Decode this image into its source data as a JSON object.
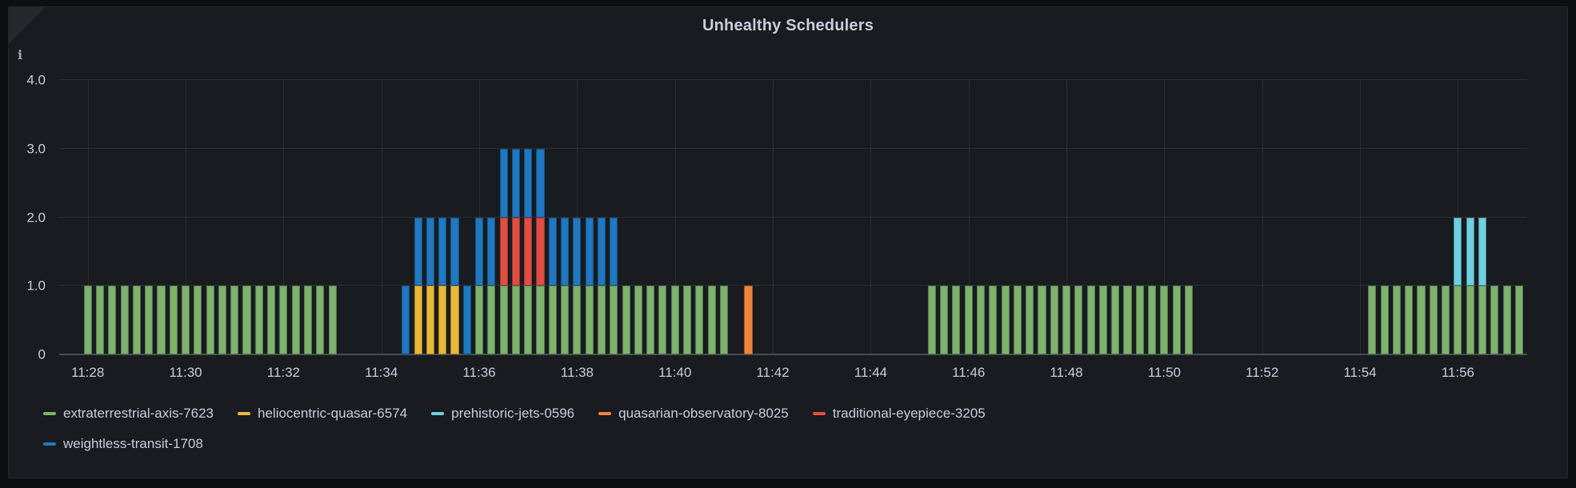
{
  "panel": {
    "info_icon_glyph": "i"
  },
  "chart_data": {
    "type": "bar",
    "stacked": true,
    "title": "Unhealthy Schedulers",
    "xlabel": "",
    "ylabel": "",
    "grid": true,
    "legend_position": "bottom",
    "legend_wrap_after": 5,
    "ylim": [
      0,
      4
    ],
    "y_ticks": [
      {
        "label": "0",
        "value": 0
      },
      {
        "label": "1.0",
        "value": 1
      },
      {
        "label": "2.0",
        "value": 2
      },
      {
        "label": "3.0",
        "value": 3
      },
      {
        "label": "4.0",
        "value": 4
      }
    ],
    "x_range": [
      "11:27:25",
      "11:57:25"
    ],
    "x_ticks": [
      "11:28",
      "11:30",
      "11:32",
      "11:34",
      "11:36",
      "11:38",
      "11:40",
      "11:42",
      "11:44",
      "11:46",
      "11:48",
      "11:50",
      "11:52",
      "11:54",
      "11:56"
    ],
    "bar_interval_seconds": 15,
    "series": [
      {
        "name": "extraterrestrial-axis-7623",
        "color": "#7EB26D"
      },
      {
        "name": "heliocentric-quasar-6574",
        "color": "#EAB839"
      },
      {
        "name": "prehistoric-jets-0596",
        "color": "#6ED0E0"
      },
      {
        "name": "quasarian-observatory-8025",
        "color": "#EF843C"
      },
      {
        "name": "traditional-eyepiece-3205",
        "color": "#E24D42"
      },
      {
        "name": "weightless-transit-1708",
        "color": "#1F78C1"
      }
    ],
    "bars": [
      [
        "11:28:00",
        [
          1,
          0,
          0,
          0,
          0,
          0
        ]
      ],
      [
        "11:28:15",
        [
          1,
          0,
          0,
          0,
          0,
          0
        ]
      ],
      [
        "11:28:30",
        [
          1,
          0,
          0,
          0,
          0,
          0
        ]
      ],
      [
        "11:28:45",
        [
          1,
          0,
          0,
          0,
          0,
          0
        ]
      ],
      [
        "11:29:00",
        [
          1,
          0,
          0,
          0,
          0,
          0
        ]
      ],
      [
        "11:29:15",
        [
          1,
          0,
          0,
          0,
          0,
          0
        ]
      ],
      [
        "11:29:30",
        [
          1,
          0,
          0,
          0,
          0,
          0
        ]
      ],
      [
        "11:29:45",
        [
          1,
          0,
          0,
          0,
          0,
          0
        ]
      ],
      [
        "11:30:00",
        [
          1,
          0,
          0,
          0,
          0,
          0
        ]
      ],
      [
        "11:30:15",
        [
          1,
          0,
          0,
          0,
          0,
          0
        ]
      ],
      [
        "11:30:30",
        [
          1,
          0,
          0,
          0,
          0,
          0
        ]
      ],
      [
        "11:30:45",
        [
          1,
          0,
          0,
          0,
          0,
          0
        ]
      ],
      [
        "11:31:00",
        [
          1,
          0,
          0,
          0,
          0,
          0
        ]
      ],
      [
        "11:31:15",
        [
          1,
          0,
          0,
          0,
          0,
          0
        ]
      ],
      [
        "11:31:30",
        [
          1,
          0,
          0,
          0,
          0,
          0
        ]
      ],
      [
        "11:31:45",
        [
          1,
          0,
          0,
          0,
          0,
          0
        ]
      ],
      [
        "11:32:00",
        [
          1,
          0,
          0,
          0,
          0,
          0
        ]
      ],
      [
        "11:32:15",
        [
          1,
          0,
          0,
          0,
          0,
          0
        ]
      ],
      [
        "11:32:30",
        [
          1,
          0,
          0,
          0,
          0,
          0
        ]
      ],
      [
        "11:32:45",
        [
          1,
          0,
          0,
          0,
          0,
          0
        ]
      ],
      [
        "11:33:00",
        [
          1,
          0,
          0,
          0,
          0,
          0
        ]
      ],
      [
        "11:34:30",
        [
          0,
          0,
          0,
          0,
          0,
          1
        ]
      ],
      [
        "11:34:45",
        [
          0,
          1,
          0,
          0,
          0,
          1
        ]
      ],
      [
        "11:35:00",
        [
          0,
          1,
          0,
          0,
          0,
          1
        ]
      ],
      [
        "11:35:15",
        [
          0,
          1,
          0,
          0,
          0,
          1
        ]
      ],
      [
        "11:35:30",
        [
          0,
          1,
          0,
          0,
          0,
          1
        ]
      ],
      [
        "11:35:45",
        [
          0,
          0,
          0,
          0,
          0,
          1
        ]
      ],
      [
        "11:36:00",
        [
          1,
          0,
          0,
          0,
          0,
          1
        ]
      ],
      [
        "11:36:15",
        [
          1,
          0,
          0,
          0,
          0,
          1
        ]
      ],
      [
        "11:36:30",
        [
          1,
          0,
          0,
          0,
          1,
          1
        ]
      ],
      [
        "11:36:45",
        [
          1,
          0,
          0,
          0,
          1,
          1
        ]
      ],
      [
        "11:37:00",
        [
          1,
          0,
          0,
          0,
          1,
          1
        ]
      ],
      [
        "11:37:15",
        [
          1,
          0,
          0,
          0,
          1,
          1
        ]
      ],
      [
        "11:37:30",
        [
          1,
          0,
          0,
          0,
          0,
          1
        ]
      ],
      [
        "11:37:45",
        [
          1,
          0,
          0,
          0,
          0,
          1
        ]
      ],
      [
        "11:38:00",
        [
          1,
          0,
          0,
          0,
          0,
          1
        ]
      ],
      [
        "11:38:15",
        [
          1,
          0,
          0,
          0,
          0,
          1
        ]
      ],
      [
        "11:38:30",
        [
          1,
          0,
          0,
          0,
          0,
          1
        ]
      ],
      [
        "11:38:45",
        [
          1,
          0,
          0,
          0,
          0,
          1
        ]
      ],
      [
        "11:39:00",
        [
          1,
          0,
          0,
          0,
          0,
          0
        ]
      ],
      [
        "11:39:15",
        [
          1,
          0,
          0,
          0,
          0,
          0
        ]
      ],
      [
        "11:39:30",
        [
          1,
          0,
          0,
          0,
          0,
          0
        ]
      ],
      [
        "11:39:45",
        [
          1,
          0,
          0,
          0,
          0,
          0
        ]
      ],
      [
        "11:40:00",
        [
          1,
          0,
          0,
          0,
          0,
          0
        ]
      ],
      [
        "11:40:15",
        [
          1,
          0,
          0,
          0,
          0,
          0
        ]
      ],
      [
        "11:40:30",
        [
          1,
          0,
          0,
          0,
          0,
          0
        ]
      ],
      [
        "11:40:45",
        [
          1,
          0,
          0,
          0,
          0,
          0
        ]
      ],
      [
        "11:41:00",
        [
          1,
          0,
          0,
          0,
          0,
          0
        ]
      ],
      [
        "11:41:30",
        [
          0,
          0,
          0,
          1,
          0,
          0
        ]
      ],
      [
        "11:45:15",
        [
          1,
          0,
          0,
          0,
          0,
          0
        ]
      ],
      [
        "11:45:30",
        [
          1,
          0,
          0,
          0,
          0,
          0
        ]
      ],
      [
        "11:45:45",
        [
          1,
          0,
          0,
          0,
          0,
          0
        ]
      ],
      [
        "11:46:00",
        [
          1,
          0,
          0,
          0,
          0,
          0
        ]
      ],
      [
        "11:46:15",
        [
          1,
          0,
          0,
          0,
          0,
          0
        ]
      ],
      [
        "11:46:30",
        [
          1,
          0,
          0,
          0,
          0,
          0
        ]
      ],
      [
        "11:46:45",
        [
          1,
          0,
          0,
          0,
          0,
          0
        ]
      ],
      [
        "11:47:00",
        [
          1,
          0,
          0,
          0,
          0,
          0
        ]
      ],
      [
        "11:47:15",
        [
          1,
          0,
          0,
          0,
          0,
          0
        ]
      ],
      [
        "11:47:30",
        [
          1,
          0,
          0,
          0,
          0,
          0
        ]
      ],
      [
        "11:47:45",
        [
          1,
          0,
          0,
          0,
          0,
          0
        ]
      ],
      [
        "11:48:00",
        [
          1,
          0,
          0,
          0,
          0,
          0
        ]
      ],
      [
        "11:48:15",
        [
          1,
          0,
          0,
          0,
          0,
          0
        ]
      ],
      [
        "11:48:30",
        [
          1,
          0,
          0,
          0,
          0,
          0
        ]
      ],
      [
        "11:48:45",
        [
          1,
          0,
          0,
          0,
          0,
          0
        ]
      ],
      [
        "11:49:00",
        [
          1,
          0,
          0,
          0,
          0,
          0
        ]
      ],
      [
        "11:49:15",
        [
          1,
          0,
          0,
          0,
          0,
          0
        ]
      ],
      [
        "11:49:30",
        [
          1,
          0,
          0,
          0,
          0,
          0
        ]
      ],
      [
        "11:49:45",
        [
          1,
          0,
          0,
          0,
          0,
          0
        ]
      ],
      [
        "11:50:00",
        [
          1,
          0,
          0,
          0,
          0,
          0
        ]
      ],
      [
        "11:50:15",
        [
          1,
          0,
          0,
          0,
          0,
          0
        ]
      ],
      [
        "11:50:30",
        [
          1,
          0,
          0,
          0,
          0,
          0
        ]
      ],
      [
        "11:54:15",
        [
          1,
          0,
          0,
          0,
          0,
          0
        ]
      ],
      [
        "11:54:30",
        [
          1,
          0,
          0,
          0,
          0,
          0
        ]
      ],
      [
        "11:54:45",
        [
          1,
          0,
          0,
          0,
          0,
          0
        ]
      ],
      [
        "11:55:00",
        [
          1,
          0,
          0,
          0,
          0,
          0
        ]
      ],
      [
        "11:55:15",
        [
          1,
          0,
          0,
          0,
          0,
          0
        ]
      ],
      [
        "11:55:30",
        [
          1,
          0,
          0,
          0,
          0,
          0
        ]
      ],
      [
        "11:55:45",
        [
          1,
          0,
          0,
          0,
          0,
          0
        ]
      ],
      [
        "11:56:00",
        [
          1,
          0,
          1,
          0,
          0,
          0
        ]
      ],
      [
        "11:56:15",
        [
          1,
          0,
          1,
          0,
          0,
          0
        ]
      ],
      [
        "11:56:30",
        [
          1,
          0,
          1,
          0,
          0,
          0
        ]
      ],
      [
        "11:56:45",
        [
          1,
          0,
          0,
          0,
          0,
          0
        ]
      ],
      [
        "11:57:00",
        [
          1,
          0,
          0,
          0,
          0,
          0
        ]
      ],
      [
        "11:57:15",
        [
          1,
          0,
          0,
          0,
          0,
          0
        ]
      ]
    ]
  }
}
